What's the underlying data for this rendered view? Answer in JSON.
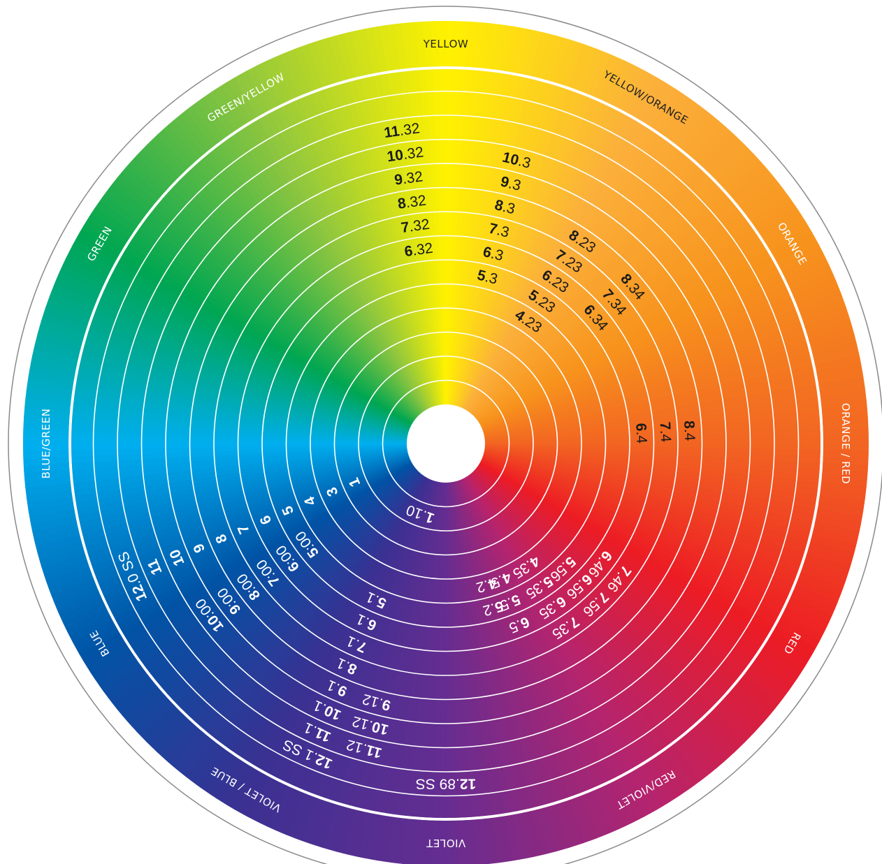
{
  "outer_ring": {
    "labels": [
      {
        "id": "yellow",
        "text": "YELLOW",
        "angle": 0,
        "color": "#fff200",
        "label_dark": true
      },
      {
        "id": "yellow-orange",
        "text": "YELLOW/ORANGE",
        "angle": 30,
        "color": "#fbb03b",
        "label_dark": true
      },
      {
        "id": "orange",
        "text": "ORANGE",
        "angle": 60,
        "color": "#f7941d",
        "label_dark": false
      },
      {
        "id": "orange-red",
        "text": "ORANGE / RED",
        "angle": 90,
        "color": "#f26522",
        "label_dark": false
      },
      {
        "id": "red",
        "text": "RED",
        "angle": 120,
        "color": "#ed1c24",
        "label_dark": false
      },
      {
        "id": "red-violet",
        "text": "RED/VIOLET",
        "angle": 150,
        "color": "#b5246e",
        "label_dark": false
      },
      {
        "id": "violet",
        "text": "VIOLET",
        "angle": 180,
        "color": "#662d91",
        "label_dark": false
      },
      {
        "id": "violet-blue",
        "text": "VIOLET / BLUE",
        "angle": 210,
        "color": "#3a3192",
        "label_dark": false
      },
      {
        "id": "blue",
        "text": "BLUE",
        "angle": 240,
        "color": "#0054a6",
        "label_dark": false
      },
      {
        "id": "blue-green",
        "text": "BLUE/GREEN",
        "angle": 270,
        "color": "#00aeef",
        "label_dark": false
      },
      {
        "id": "green",
        "text": "GREEN",
        "angle": 300,
        "color": "#00a651",
        "label_dark": false
      },
      {
        "id": "green-yellow",
        "text": "GREEN/YELLOW",
        "angle": 330,
        "color": "#8dc63f",
        "label_dark": false
      }
    ]
  },
  "shade_codes": [
    {
      "major": "11",
      "minor": ".32",
      "angle": -8,
      "ring": 12,
      "dark": true
    },
    {
      "major": "10",
      "minor": ".32",
      "angle": -8,
      "ring": 11,
      "dark": true
    },
    {
      "major": "9",
      "minor": ".32",
      "angle": -8,
      "ring": 10,
      "dark": true
    },
    {
      "major": "8",
      "minor": ".32",
      "angle": -8,
      "ring": 9,
      "dark": true
    },
    {
      "major": "7",
      "minor": ".32",
      "angle": -8,
      "ring": 8,
      "dark": true
    },
    {
      "major": "6",
      "minor": ".32",
      "angle": -8,
      "ring": 7,
      "dark": true
    },
    {
      "major": "10",
      "minor": ".3",
      "angle": 14,
      "ring": 11,
      "dark": true
    },
    {
      "major": "9",
      "minor": ".3",
      "angle": 14,
      "ring": 10,
      "dark": true
    },
    {
      "major": "8",
      "minor": ".3",
      "angle": 14,
      "ring": 9,
      "dark": true
    },
    {
      "major": "7",
      "minor": ".3",
      "angle": 14,
      "ring": 8,
      "dark": true
    },
    {
      "major": "6",
      "minor": ".3",
      "angle": 14,
      "ring": 7,
      "dark": true
    },
    {
      "major": "5",
      "minor": ".3",
      "angle": 14,
      "ring": 6,
      "dark": true
    },
    {
      "major": "8",
      "minor": ".23",
      "angle": 34,
      "ring": 9,
      "dark": true
    },
    {
      "major": "7",
      "minor": ".23",
      "angle": 34,
      "ring": 8,
      "dark": true
    },
    {
      "major": "6",
      "minor": ".23",
      "angle": 34,
      "ring": 7,
      "dark": true
    },
    {
      "major": "5",
      "minor": ".23",
      "angle": 34,
      "ring": 6,
      "dark": true
    },
    {
      "major": "4",
      "minor": ".23",
      "angle": 34,
      "ring": 5,
      "dark": true
    },
    {
      "major": "8",
      "minor": ".34",
      "angle": 50,
      "ring": 9,
      "dark": true
    },
    {
      "major": "7",
      "minor": ".34",
      "angle": 50,
      "ring": 8,
      "dark": true
    },
    {
      "major": "6",
      "minor": ".34",
      "angle": 50,
      "ring": 7,
      "dark": true
    },
    {
      "major": "8",
      "minor": ".4",
      "angle": 87,
      "ring": 9,
      "dark": true
    },
    {
      "major": "7",
      "minor": ".4",
      "angle": 87,
      "ring": 8,
      "dark": true
    },
    {
      "major": "6",
      "minor": ".4",
      "angle": 87,
      "ring": 7,
      "dark": true
    },
    {
      "major": "7",
      "minor": ".46",
      "angle": 128,
      "ring": 8,
      "dark": false
    },
    {
      "major": "6",
      "minor": ".46",
      "angle": 128,
      "ring": 7,
      "dark": false
    },
    {
      "major": "7",
      "minor": ".56",
      "angle": 137,
      "ring": 8,
      "dark": false
    },
    {
      "major": "6",
      "minor": ".56",
      "angle": 137,
      "ring": 7,
      "dark": false
    },
    {
      "major": "5",
      "minor": ".56",
      "angle": 137,
      "ring": 6,
      "dark": false
    },
    {
      "major": "7",
      "minor": ".35",
      "angle": 147,
      "ring": 8,
      "dark": false
    },
    {
      "major": "6",
      "minor": ".35",
      "angle": 147,
      "ring": 7,
      "dark": false
    },
    {
      "major": "5",
      "minor": ".35",
      "angle": 147,
      "ring": 6,
      "dark": false
    },
    {
      "major": "4",
      "minor": ".35",
      "angle": 147,
      "ring": 5,
      "dark": false
    },
    {
      "major": "6",
      "minor": ".5",
      "angle": 158,
      "ring": 7,
      "dark": false
    },
    {
      "major": "5",
      "minor": ".5",
      "angle": 158,
      "ring": 6,
      "dark": false
    },
    {
      "major": "4",
      "minor": ".5",
      "angle": 158,
      "ring": 5,
      "dark": false
    },
    {
      "major": "5",
      "minor": ".2",
      "angle": 164,
      "ring": 6,
      "dark": false
    },
    {
      "major": "4",
      "minor": ".2",
      "angle": 164,
      "ring": 5,
      "dark": false
    },
    {
      "major": "12",
      "minor": ".89 SS",
      "angle": 180,
      "ring": 13,
      "dark": false
    },
    {
      "major": "12",
      "minor": ".1 SS",
      "angle": 204,
      "ring": 13,
      "dark": false
    },
    {
      "major": "11",
      "minor": ".1",
      "angle": 204,
      "ring": 12,
      "dark": false
    },
    {
      "major": "10",
      "minor": ".1",
      "angle": 204,
      "ring": 11,
      "dark": false
    },
    {
      "major": "9",
      "minor": ".1",
      "angle": 204,
      "ring": 10,
      "dark": false
    },
    {
      "major": "8",
      "minor": ".1",
      "angle": 204,
      "ring": 9,
      "dark": false
    },
    {
      "major": "7",
      "minor": ".1",
      "angle": 204,
      "ring": 8,
      "dark": false
    },
    {
      "major": "6",
      "minor": ".1",
      "angle": 204,
      "ring": 7,
      "dark": false
    },
    {
      "major": "5",
      "minor": ".1",
      "angle": 204,
      "ring": 6,
      "dark": false
    },
    {
      "major": "11",
      "minor": ".12",
      "angle": 195,
      "ring": 12,
      "dark": false
    },
    {
      "major": "10",
      "minor": ".12",
      "angle": 195,
      "ring": 11,
      "dark": false
    },
    {
      "major": "9",
      "minor": ".12",
      "angle": 195,
      "ring": 10,
      "dark": false
    },
    {
      "major": "12",
      "minor": ".0 SS",
      "angle": 247,
      "ring": 13,
      "dark": false
    },
    {
      "major": "11",
      "minor": "",
      "angle": 247,
      "ring": 12,
      "dark": false
    },
    {
      "major": "10",
      "minor": "",
      "angle": 247,
      "ring": 11,
      "dark": false
    },
    {
      "major": "9",
      "minor": "",
      "angle": 247,
      "ring": 10,
      "dark": false
    },
    {
      "major": "8",
      "minor": "",
      "angle": 247,
      "ring": 9,
      "dark": false
    },
    {
      "major": "7",
      "minor": "",
      "angle": 247,
      "ring": 8,
      "dark": false
    },
    {
      "major": "6",
      "minor": "",
      "angle": 247,
      "ring": 7,
      "dark": false
    },
    {
      "major": "5",
      "minor": "",
      "angle": 247,
      "ring": 6,
      "dark": false
    },
    {
      "major": "4",
      "minor": "",
      "angle": 247,
      "ring": 5,
      "dark": false
    },
    {
      "major": "3",
      "minor": "",
      "angle": 247,
      "ring": 4,
      "dark": false
    },
    {
      "major": "1",
      "minor": "",
      "angle": 247,
      "ring": 3,
      "dark": false
    },
    {
      "major": "10",
      "minor": ":00",
      "angle": 234,
      "ring": 11,
      "dark": false
    },
    {
      "major": "9",
      "minor": ":00",
      "angle": 234,
      "ring": 10,
      "dark": false
    },
    {
      "major": "8",
      "minor": ":00",
      "angle": 234,
      "ring": 9,
      "dark": false
    },
    {
      "major": "7",
      "minor": ":00",
      "angle": 234,
      "ring": 8,
      "dark": false
    },
    {
      "major": "6",
      "minor": ":00",
      "angle": 234,
      "ring": 7,
      "dark": false
    },
    {
      "major": "5",
      "minor": ":00",
      "angle": 234,
      "ring": 6,
      "dark": false
    },
    {
      "major": "1",
      "minor": ".10",
      "angle": 200,
      "ring": 2,
      "dark": false
    }
  ]
}
